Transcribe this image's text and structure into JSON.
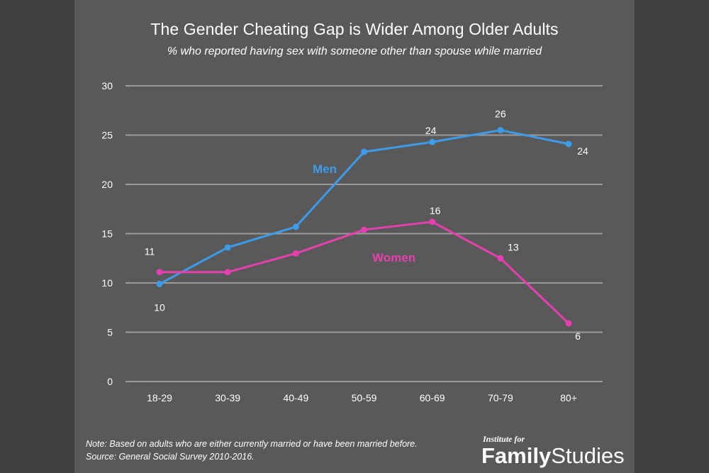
{
  "title": "The Gender Cheating Gap is Wider Among Older Adults",
  "subtitle": "% who reported having sex with someone other than spouse while married",
  "note_line1": "Note: Based on adults who are either currently married or have been married before.",
  "note_line2": "Source: General Social Survey 2010-2016.",
  "logo": {
    "top": "Institute for",
    "word1": "Family",
    "word2": "Studies"
  },
  "colors": {
    "men": "#3d9be9",
    "women": "#e63fae",
    "grid": "#9a9a9a",
    "text": "#ffffff"
  },
  "chart_data": {
    "type": "line",
    "categories": [
      "18-29",
      "30-39",
      "40-49",
      "50-59",
      "60-69",
      "70-79",
      "80+"
    ],
    "ylim": [
      0,
      30
    ],
    "yticks": [
      0,
      5,
      10,
      15,
      20,
      25,
      30
    ],
    "grid": true,
    "series": [
      {
        "name": "Men",
        "values": [
          9.9,
          13.6,
          15.7,
          23.3,
          24.3,
          25.5,
          24.1
        ],
        "point_labels": [
          "10",
          "",
          "",
          "",
          "24",
          "26",
          "24"
        ]
      },
      {
        "name": "Women",
        "values": [
          11.1,
          11.1,
          13.0,
          15.4,
          16.2,
          12.5,
          5.9
        ],
        "point_labels": [
          "11",
          "",
          "",
          "",
          "16",
          "13",
          "6"
        ]
      }
    ]
  }
}
